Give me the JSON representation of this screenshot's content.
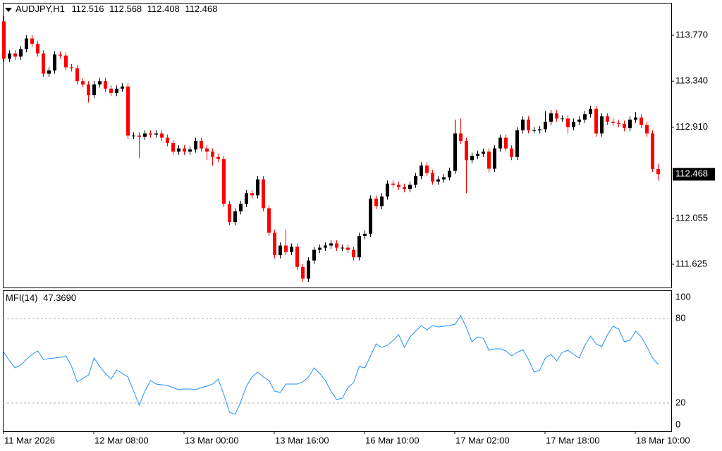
{
  "chart_data": {
    "type": "candlestick",
    "symbol": "AUDJPY,H1",
    "up_color": "#000000",
    "down_color": "#ff0000",
    "categories": [
      "11 Mar 2026",
      null,
      null,
      null,
      null,
      null,
      null,
      null,
      null,
      null,
      null,
      null,
      null,
      null,
      null,
      null,
      "12 Mar 08:00",
      null,
      null,
      null,
      null,
      null,
      null,
      null,
      null,
      null,
      null,
      null,
      null,
      null,
      null,
      null,
      "13 Mar 00:00",
      null,
      null,
      null,
      null,
      null,
      null,
      null,
      null,
      null,
      null,
      null,
      null,
      null,
      null,
      null,
      "13 Mar 16:00",
      null,
      null,
      null,
      null,
      null,
      null,
      null,
      null,
      null,
      null,
      null,
      null,
      null,
      null,
      null,
      "16 Mar 10:00",
      null,
      null,
      null,
      null,
      null,
      null,
      null,
      null,
      null,
      null,
      null,
      null,
      null,
      null,
      null,
      "17 Mar 02:00",
      null,
      null,
      null,
      null,
      null,
      null,
      null,
      null,
      null,
      null,
      null,
      null,
      null,
      null,
      null,
      "17 Mar 18:00",
      null,
      null,
      null,
      null,
      null,
      null,
      null,
      null,
      null,
      null,
      null,
      null,
      null,
      null,
      null,
      "18 Mar 10:00",
      null,
      null,
      null,
      null
    ],
    "open": [
      113.9,
      113.55,
      113.6,
      113.57,
      113.64,
      113.74,
      113.69,
      113.6,
      113.41,
      113.44,
      113.59,
      113.58,
      113.47,
      113.46,
      113.34,
      113.31,
      113.21,
      113.31,
      113.34,
      113.27,
      113.23,
      113.27,
      113.29,
      112.83,
      112.83,
      112.82,
      112.85,
      112.84,
      112.85,
      112.81,
      112.76,
      112.68,
      112.71,
      112.68,
      112.7,
      112.78,
      112.71,
      112.68,
      112.63,
      112.61,
      112.19,
      112.02,
      112.12,
      112.19,
      112.29,
      112.27,
      112.42,
      112.15,
      111.92,
      111.71,
      111.8,
      111.74,
      111.79,
      111.6,
      111.49,
      111.66,
      111.76,
      111.78,
      111.8,
      111.82,
      111.78,
      111.78,
      111.76,
      111.69,
      111.89,
      111.91,
      112.24,
      112.17,
      112.26,
      112.38,
      112.37,
      112.35,
      112.33,
      112.37,
      112.45,
      112.55,
      112.48,
      112.4,
      112.42,
      112.44,
      112.5,
      112.85,
      112.78,
      112.6,
      112.64,
      112.66,
      112.68,
      112.52,
      112.71,
      112.81,
      112.71,
      112.63,
      112.88,
      112.98,
      112.88,
      112.88,
      112.89,
      112.96,
      113.04,
      112.99,
      112.99,
      112.91,
      112.96,
      112.98,
      113.03,
      113.08,
      112.85,
      113.01,
      112.96,
      112.95,
      112.94,
      112.9,
      112.98,
      113.0,
      112.93,
      112.85,
      112.516
    ],
    "high": [
      113.95,
      113.63,
      113.63,
      113.67,
      113.77,
      113.77,
      113.72,
      113.63,
      113.47,
      113.62,
      113.62,
      113.61,
      113.5,
      113.49,
      113.37,
      113.34,
      113.34,
      113.37,
      113.37,
      113.3,
      113.3,
      113.32,
      113.32,
      112.86,
      112.86,
      112.88,
      112.88,
      112.88,
      112.88,
      112.84,
      112.79,
      112.74,
      112.74,
      112.73,
      112.81,
      112.81,
      112.74,
      112.71,
      112.66,
      112.64,
      112.22,
      112.15,
      112.22,
      112.32,
      112.32,
      112.45,
      112.45,
      112.18,
      111.95,
      111.83,
      111.95,
      111.82,
      111.82,
      111.63,
      111.69,
      111.79,
      111.81,
      111.83,
      111.85,
      111.85,
      111.81,
      111.81,
      111.79,
      111.92,
      111.94,
      112.27,
      112.27,
      112.29,
      112.41,
      112.41,
      112.4,
      112.38,
      112.4,
      112.48,
      112.58,
      112.58,
      112.51,
      112.45,
      112.47,
      112.53,
      112.98,
      112.99,
      112.81,
      112.67,
      112.69,
      112.71,
      112.71,
      112.74,
      112.84,
      112.84,
      112.74,
      112.91,
      113.01,
      113.01,
      112.91,
      112.92,
      113.06,
      113.07,
      113.07,
      113.02,
      113.02,
      112.99,
      113.01,
      113.06,
      113.11,
      113.11,
      113.04,
      113.04,
      112.99,
      112.98,
      112.97,
      113.01,
      113.05,
      113.03,
      112.96,
      112.88,
      112.568
    ],
    "low": [
      113.52,
      113.52,
      113.54,
      113.54,
      113.61,
      113.66,
      113.57,
      113.38,
      113.38,
      113.41,
      113.55,
      113.44,
      113.43,
      113.31,
      113.28,
      113.14,
      113.18,
      113.28,
      113.24,
      113.2,
      113.2,
      113.24,
      112.8,
      112.8,
      112.62,
      112.79,
      112.81,
      112.81,
      112.78,
      112.73,
      112.65,
      112.65,
      112.65,
      112.65,
      112.67,
      112.68,
      112.6,
      112.55,
      112.58,
      112.16,
      111.99,
      111.99,
      112.09,
      112.16,
      112.24,
      112.24,
      112.12,
      111.89,
      111.68,
      111.68,
      111.71,
      111.71,
      111.57,
      111.46,
      111.46,
      111.63,
      111.73,
      111.75,
      111.77,
      111.75,
      111.75,
      111.73,
      111.66,
      111.66,
      111.86,
      111.88,
      112.14,
      112.14,
      112.23,
      112.34,
      112.32,
      112.3,
      112.3,
      112.34,
      112.42,
      112.45,
      112.37,
      112.37,
      112.39,
      112.41,
      112.47,
      112.75,
      112.29,
      112.57,
      112.61,
      112.63,
      112.49,
      112.49,
      112.68,
      112.68,
      112.6,
      112.6,
      112.85,
      112.85,
      112.85,
      112.85,
      112.86,
      112.93,
      112.96,
      112.96,
      112.85,
      112.88,
      112.93,
      112.95,
      113.0,
      112.82,
      112.82,
      112.93,
      112.92,
      112.91,
      112.87,
      112.87,
      112.95,
      112.9,
      112.82,
      112.49,
      112.408
    ],
    "close": [
      113.55,
      113.6,
      113.57,
      113.64,
      113.74,
      113.69,
      113.6,
      113.41,
      113.44,
      113.59,
      113.58,
      113.47,
      113.46,
      113.34,
      113.31,
      113.21,
      113.31,
      113.34,
      113.27,
      113.23,
      113.27,
      113.29,
      112.83,
      112.83,
      112.82,
      112.85,
      112.84,
      112.85,
      112.81,
      112.76,
      112.68,
      112.71,
      112.68,
      112.7,
      112.78,
      112.71,
      112.68,
      112.63,
      112.61,
      112.19,
      112.02,
      112.12,
      112.19,
      112.29,
      112.27,
      112.42,
      112.15,
      111.92,
      111.71,
      111.8,
      111.74,
      111.79,
      111.6,
      111.49,
      111.66,
      111.76,
      111.78,
      111.8,
      111.82,
      111.78,
      111.78,
      111.76,
      111.69,
      111.89,
      111.91,
      112.24,
      112.17,
      112.26,
      112.38,
      112.37,
      112.35,
      112.33,
      112.37,
      112.45,
      112.55,
      112.48,
      112.4,
      112.42,
      112.44,
      112.5,
      112.85,
      112.78,
      112.6,
      112.64,
      112.66,
      112.68,
      112.52,
      112.71,
      112.81,
      112.71,
      112.63,
      112.88,
      112.98,
      112.88,
      112.88,
      112.89,
      112.96,
      113.04,
      112.99,
      112.99,
      112.91,
      112.96,
      112.98,
      113.03,
      113.08,
      112.85,
      113.01,
      112.96,
      112.95,
      112.94,
      112.9,
      112.98,
      113.0,
      112.93,
      112.85,
      112.516,
      112.468
    ],
    "ylim": [
      111.407,
      114.074
    ],
    "yticks": [
      {
        "value": 111.625,
        "label": "111.625"
      },
      {
        "value": 112.055,
        "label": "112.055"
      },
      {
        "value": 112.91,
        "label": "112.910"
      },
      {
        "value": 113.34,
        "label": "113.340"
      },
      {
        "value": 113.77,
        "label": "113.770"
      }
    ],
    "mfi": {
      "name": "MFI(14)",
      "last_label": "47.3690",
      "color": "#1e90ff",
      "values": [
        56,
        50,
        45,
        47,
        51,
        54.5,
        57,
        51,
        51.5,
        52,
        52.5,
        53.5,
        46,
        35,
        37.5,
        40,
        52,
        46,
        41,
        37,
        43.5,
        41,
        38.5,
        28.5,
        18.5,
        28.5,
        36,
        33.5,
        33,
        32.5,
        31,
        29.5,
        30,
        30,
        29.5,
        31,
        32,
        33.5,
        37,
        26,
        13.5,
        12,
        21,
        32,
        38.5,
        42,
        38.5,
        36,
        28.5,
        27.5,
        33.5,
        33.5,
        33.5,
        35,
        38.5,
        45,
        41,
        36,
        28.5,
        22.5,
        23.5,
        31,
        34.5,
        46,
        45,
        53.5,
        62,
        59.5,
        61,
        64.5,
        68.5,
        59.5,
        67,
        71,
        75,
        72,
        75,
        74,
        74.5,
        75,
        76,
        82,
        73.5,
        63.5,
        67,
        66,
        57.5,
        58.5,
        58.5,
        57,
        53.5,
        56,
        58,
        51,
        42,
        43.5,
        52,
        54.5,
        50,
        56,
        57.5,
        54.5,
        52,
        61,
        67.5,
        62,
        60,
        68.5,
        74.5,
        72.5,
        63.5,
        64.5,
        71,
        67,
        60,
        52,
        47.369
      ],
      "ylim": [
        0,
        100
      ],
      "yticks": [
        0,
        20,
        80,
        100
      ]
    }
  }
}
